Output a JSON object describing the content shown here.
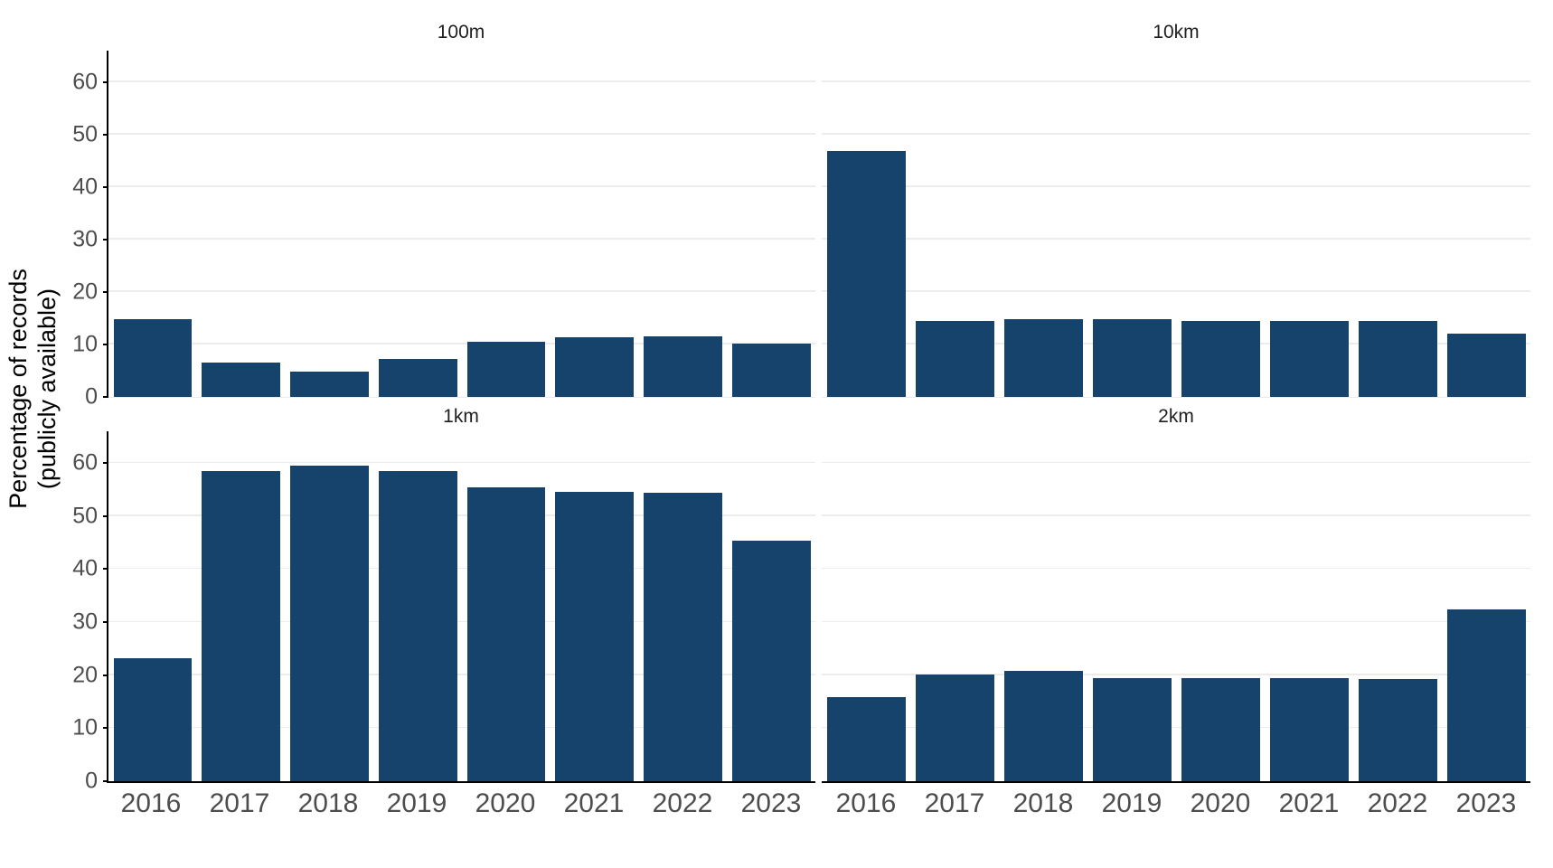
{
  "figure": {
    "y_axis_title_lines": [
      "Percentage of records",
      "(publicly available)"
    ]
  },
  "colors": {
    "bar": "#15436c",
    "gridline": "#ececec",
    "axis": "#000000",
    "tick_label": "#4d4d4d",
    "panel_title": "#1f1f1f"
  },
  "chart_data": {
    "type": "bar",
    "facets": "2x2 grid, one bar series per panel",
    "categories": [
      "2016",
      "2017",
      "2018",
      "2019",
      "2020",
      "2021",
      "2022",
      "2023"
    ],
    "xlabel": "",
    "ylabel": "Percentage of records (publicly available)",
    "ylim": [
      0,
      66
    ],
    "yticks": [
      0,
      10,
      20,
      30,
      40,
      50,
      60
    ],
    "grid": "horizontal gridlines only",
    "legend": "none",
    "panels": [
      {
        "title": "100m",
        "values": [
          14.9,
          6.6,
          4.8,
          7.3,
          10.5,
          11.3,
          11.6,
          10.1
        ]
      },
      {
        "title": "10km",
        "values": [
          46.8,
          14.4,
          14.8,
          14.8,
          14.4,
          14.4,
          14.5,
          12.1
        ]
      },
      {
        "title": "1km",
        "values": [
          23.2,
          58.5,
          59.5,
          58.5,
          55.4,
          54.6,
          54.4,
          45.3
        ]
      },
      {
        "title": "2km",
        "values": [
          15.8,
          20.2,
          20.8,
          19.5,
          19.5,
          19.5,
          19.3,
          32.4
        ]
      }
    ]
  }
}
